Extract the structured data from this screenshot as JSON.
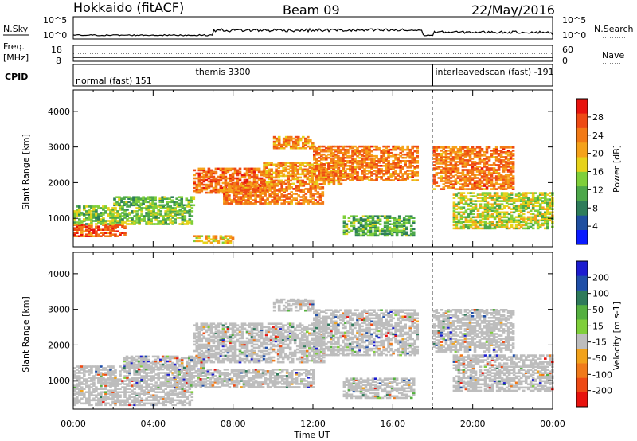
{
  "header": {
    "station": "Hokkaido (fitACF)",
    "beam": "Beam 09",
    "date": "22/May/2016"
  },
  "top_strips": {
    "nsky_label": "N.Sky",
    "nsearch_label": "N.Search",
    "nsky_ticks": [
      "10^5",
      "10^0"
    ],
    "nsearch_ticks": [
      "10^5",
      "10^0"
    ],
    "freq_label_line1": "Freq.",
    "freq_label_line2": "[MHz]",
    "freq_ticks": [
      "18",
      "8"
    ],
    "nave_label": "Nave",
    "nave_ticks": [
      "60",
      "0"
    ],
    "cpid_label": "CPID"
  },
  "cpid_segments": [
    {
      "label": "normal (fast) 151",
      "start_hour": 0
    },
    {
      "label": "themis 3300",
      "start_hour": 6
    },
    {
      "label": "interleavedscan (fast) -191",
      "start_hour": 18
    }
  ],
  "x_axis": {
    "label": "Time UT",
    "ticks": [
      "00:00",
      "04:00",
      "08:00",
      "12:00",
      "16:00",
      "20:00",
      "00:00"
    ],
    "range_hours": [
      0,
      24
    ]
  },
  "colors": {
    "power_scale": [
      "#0a1aff",
      "#1f4fa0",
      "#2e7d5a",
      "#4da84a",
      "#7fcf3a",
      "#e6d21a",
      "#f5a21a",
      "#f27a16",
      "#ee4a14",
      "#e8130e"
    ],
    "velocity_scale": [
      "#1c1cd0",
      "#1f4fa8",
      "#2e7a5a",
      "#55b040",
      "#7fcf3a",
      "#bdbdbd",
      "#f2a21a",
      "#f07a1a",
      "#ee4a14",
      "#e8130e"
    ],
    "ground_scatter": "#bdbdbd"
  },
  "chart_data": [
    {
      "type": "heatmap",
      "ylabel": "Slant Range [km]",
      "ylim": [
        200,
        4600
      ],
      "yticks": [
        "1000",
        "2000",
        "3000",
        "4000"
      ],
      "colorbar_label": "Power [dB]",
      "colorbar_ticks": [
        "4",
        "8",
        "12",
        "16",
        "20",
        "24",
        "28"
      ],
      "colorbar_range": [
        0,
        32
      ],
      "bands": [
        {
          "t0": 0.0,
          "t1": 2.6,
          "r0": 480,
          "r1": 820,
          "value": 26
        },
        {
          "t0": 0.0,
          "t1": 6.0,
          "r0": 820,
          "r1": 1350,
          "value": 14
        },
        {
          "t0": 2.0,
          "t1": 6.0,
          "r0": 1350,
          "r1": 1600,
          "value": 12
        },
        {
          "t0": 6.0,
          "t1": 9.5,
          "r0": 1700,
          "r1": 2400,
          "value": 25
        },
        {
          "t0": 7.5,
          "t1": 12.5,
          "r0": 1400,
          "r1": 1950,
          "value": 24
        },
        {
          "t0": 9.5,
          "t1": 13.5,
          "r0": 1950,
          "r1": 2550,
          "value": 22
        },
        {
          "t0": 12.0,
          "t1": 17.2,
          "r0": 2050,
          "r1": 3000,
          "value": 24
        },
        {
          "t0": 10.0,
          "t1": 12.0,
          "r0": 2950,
          "r1": 3300,
          "value": 22
        },
        {
          "t0": 13.5,
          "t1": 17.0,
          "r0": 500,
          "r1": 1050,
          "value": 12
        },
        {
          "t0": 6.0,
          "t1": 8.0,
          "r0": 300,
          "r1": 500,
          "value": 20
        },
        {
          "t0": 18.0,
          "t1": 22.0,
          "r0": 1800,
          "r1": 3000,
          "value": 24
        },
        {
          "t0": 19.0,
          "t1": 24.0,
          "r0": 700,
          "r1": 1700,
          "value": 16
        }
      ]
    },
    {
      "type": "heatmap",
      "ylabel": "Slant Range [km]",
      "ylim": [
        200,
        4600
      ],
      "yticks": [
        "1000",
        "2000",
        "3000",
        "4000"
      ],
      "colorbar_label": "Velocity [m s-1]",
      "colorbar_ticks": [
        "200",
        "100",
        "50",
        "15",
        "-15",
        "-50",
        "-100",
        "-200"
      ],
      "bands": [
        {
          "t0": 0.0,
          "t1": 6.0,
          "r0": 300,
          "r1": 1400,
          "value": 0
        },
        {
          "t0": 2.5,
          "t1": 6.5,
          "r0": 1300,
          "r1": 1700,
          "value": 0
        },
        {
          "t0": 6.0,
          "t1": 12.5,
          "r0": 1500,
          "r1": 2600,
          "value": 0
        },
        {
          "t0": 12.0,
          "t1": 17.2,
          "r0": 1700,
          "r1": 3000,
          "value": 0
        },
        {
          "t0": 10.0,
          "t1": 12.0,
          "r0": 2950,
          "r1": 3300,
          "value": 0
        },
        {
          "t0": 5.0,
          "t1": 12.0,
          "r0": 800,
          "r1": 1300,
          "value": 0
        },
        {
          "t0": 13.5,
          "t1": 17.0,
          "r0": 500,
          "r1": 1050,
          "value": 0
        },
        {
          "t0": 18.0,
          "t1": 22.0,
          "r0": 1800,
          "r1": 3000,
          "value": 0
        },
        {
          "t0": 19.0,
          "t1": 24.0,
          "r0": 700,
          "r1": 1700,
          "value": 0
        }
      ]
    }
  ]
}
